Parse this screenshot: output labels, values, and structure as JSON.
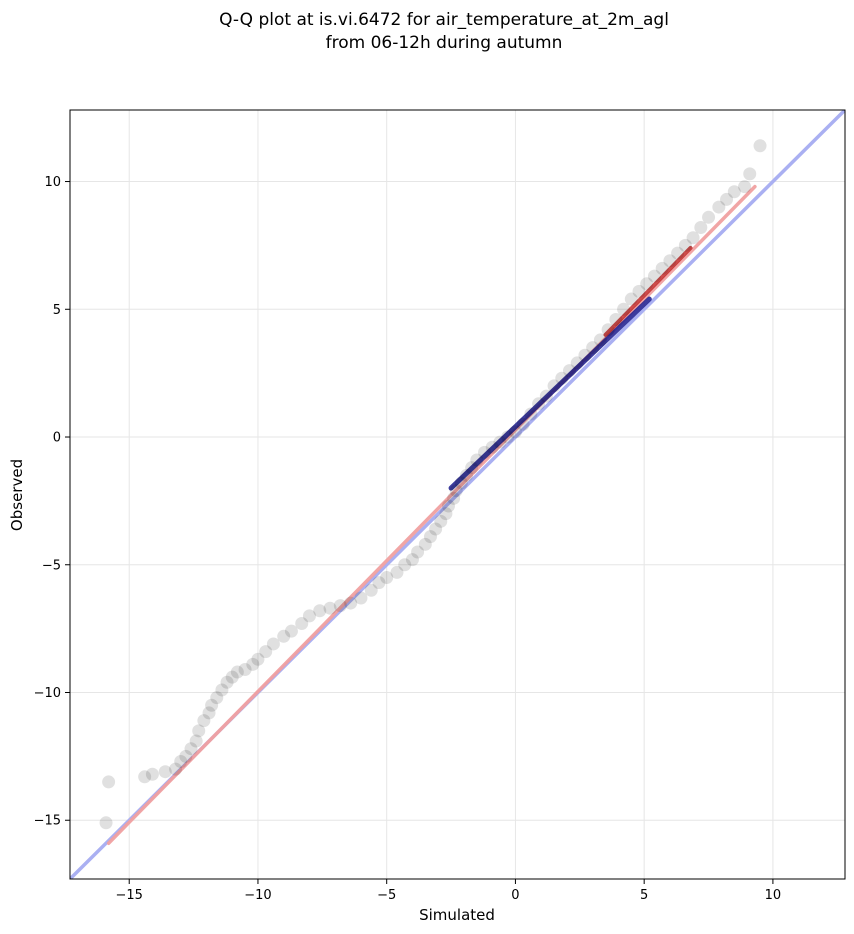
{
  "chart_data": {
    "type": "scatter",
    "title": [
      "Q-Q plot at is.vi.6472 for air_temperature_at_2m_agl",
      "from 06-12h during autumn"
    ],
    "xlabel": "Simulated",
    "ylabel": "Observed",
    "xlim": [
      -17.3,
      12.8
    ],
    "ylim": [
      -17.3,
      12.8
    ],
    "xticks": [
      -15,
      -10,
      -5,
      0,
      5,
      10
    ],
    "yticks": [
      -15,
      -10,
      -5,
      0,
      5,
      10
    ],
    "xtick_labels": [
      "−15",
      "−10",
      "−5",
      "0",
      "5",
      "10"
    ],
    "ytick_labels": [
      "−15",
      "−10",
      "−5",
      "0",
      "5",
      "10"
    ],
    "grid": true,
    "reference_line": {
      "color": "#aab0f2",
      "from": [
        -17.3,
        -17.3
      ],
      "to": [
        12.8,
        12.8
      ]
    },
    "fit_line": {
      "color": "#f0a0a0",
      "x": [
        -15.8,
        9.3
      ],
      "y": [
        -15.9,
        9.8
      ]
    },
    "core_band": {
      "color": "#1a1a8c",
      "x": [
        -2.5,
        5.2
      ],
      "y": [
        -2.0,
        5.4
      ]
    },
    "fit_highlight": {
      "color": "#c0201f",
      "x": [
        3.5,
        6.8
      ],
      "y": [
        4.0,
        7.4
      ]
    },
    "point_color": "#000000",
    "point_alpha": 0.12,
    "points": [
      [
        -15.8,
        -13.5
      ],
      [
        -15.9,
        -15.1
      ],
      [
        -14.4,
        -13.3
      ],
      [
        -14.1,
        -13.2
      ],
      [
        -13.6,
        -13.1
      ],
      [
        -13.2,
        -13.0
      ],
      [
        -13.0,
        -12.7
      ],
      [
        -12.8,
        -12.5
      ],
      [
        -12.6,
        -12.2
      ],
      [
        -12.4,
        -11.9
      ],
      [
        -12.3,
        -11.5
      ],
      [
        -12.1,
        -11.1
      ],
      [
        -11.9,
        -10.8
      ],
      [
        -11.8,
        -10.5
      ],
      [
        -11.6,
        -10.2
      ],
      [
        -11.4,
        -9.9
      ],
      [
        -11.2,
        -9.6
      ],
      [
        -11.0,
        -9.4
      ],
      [
        -10.8,
        -9.2
      ],
      [
        -10.5,
        -9.1
      ],
      [
        -10.2,
        -8.9
      ],
      [
        -10.0,
        -8.7
      ],
      [
        -9.7,
        -8.4
      ],
      [
        -9.4,
        -8.1
      ],
      [
        -9.0,
        -7.8
      ],
      [
        -8.7,
        -7.6
      ],
      [
        -8.3,
        -7.3
      ],
      [
        -8.0,
        -7.0
      ],
      [
        -7.6,
        -6.8
      ],
      [
        -7.2,
        -6.7
      ],
      [
        -6.8,
        -6.6
      ],
      [
        -6.4,
        -6.5
      ],
      [
        -6.0,
        -6.3
      ],
      [
        -5.6,
        -6.0
      ],
      [
        -5.3,
        -5.7
      ],
      [
        -5.0,
        -5.5
      ],
      [
        -4.6,
        -5.3
      ],
      [
        -4.3,
        -5.0
      ],
      [
        -4.0,
        -4.8
      ],
      [
        -3.8,
        -4.5
      ],
      [
        -3.5,
        -4.2
      ],
      [
        -3.3,
        -3.9
      ],
      [
        -3.1,
        -3.6
      ],
      [
        -2.9,
        -3.3
      ],
      [
        -2.7,
        -3.0
      ],
      [
        -2.6,
        -2.7
      ],
      [
        -2.4,
        -2.4
      ],
      [
        -2.3,
        -2.1
      ],
      [
        -2.1,
        -1.8
      ],
      [
        -1.9,
        -1.5
      ],
      [
        -1.7,
        -1.2
      ],
      [
        -1.5,
        -0.9
      ],
      [
        -1.2,
        -0.6
      ],
      [
        -0.9,
        -0.4
      ],
      [
        -0.6,
        -0.2
      ],
      [
        -0.3,
        0.0
      ],
      [
        0.0,
        0.2
      ],
      [
        0.3,
        0.5
      ],
      [
        0.6,
        0.9
      ],
      [
        0.9,
        1.3
      ],
      [
        1.2,
        1.6
      ],
      [
        1.5,
        2.0
      ],
      [
        1.8,
        2.3
      ],
      [
        2.1,
        2.6
      ],
      [
        2.4,
        2.9
      ],
      [
        2.7,
        3.2
      ],
      [
        3.0,
        3.5
      ],
      [
        3.3,
        3.8
      ],
      [
        3.6,
        4.2
      ],
      [
        3.9,
        4.6
      ],
      [
        4.2,
        5.0
      ],
      [
        4.5,
        5.4
      ],
      [
        4.8,
        5.7
      ],
      [
        5.1,
        6.0
      ],
      [
        5.4,
        6.3
      ],
      [
        5.7,
        6.6
      ],
      [
        6.0,
        6.9
      ],
      [
        6.3,
        7.2
      ],
      [
        6.6,
        7.5
      ],
      [
        6.9,
        7.8
      ],
      [
        7.2,
        8.2
      ],
      [
        7.5,
        8.6
      ],
      [
        7.9,
        9.0
      ],
      [
        8.2,
        9.3
      ],
      [
        8.5,
        9.6
      ],
      [
        8.9,
        9.8
      ],
      [
        9.1,
        10.3
      ],
      [
        9.5,
        11.4
      ]
    ]
  }
}
